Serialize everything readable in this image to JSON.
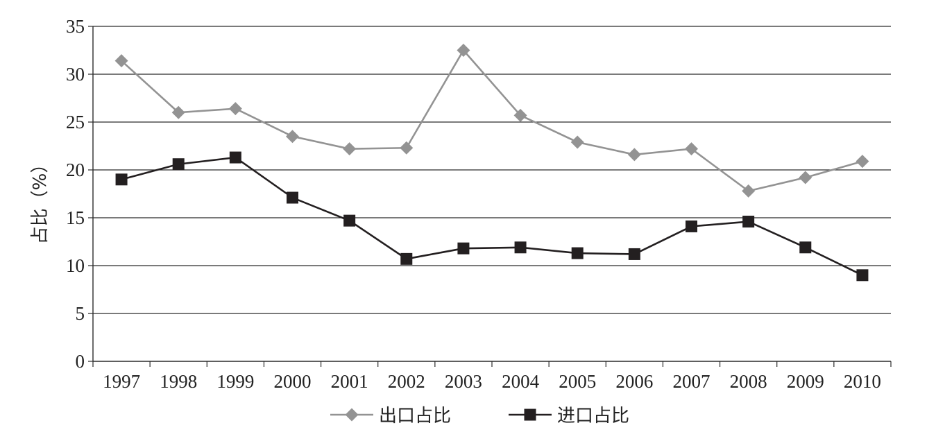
{
  "chart_data": {
    "type": "line",
    "title": "",
    "xlabel": "",
    "ylabel": "占比（%）",
    "ylim": [
      0,
      35
    ],
    "yticks": [
      "0",
      "5",
      "10",
      "15",
      "20",
      "25",
      "30",
      "35"
    ],
    "categories": [
      "1997",
      "1998",
      "1999",
      "2000",
      "2001",
      "2002",
      "2003",
      "2004",
      "2005",
      "2006",
      "2007",
      "2008",
      "2009",
      "2010"
    ],
    "grid": true,
    "legend_position": "bottom",
    "series": [
      {
        "name": "出口占比",
        "marker": "diamond",
        "color": "#939393",
        "values": [
          31.4,
          26.0,
          26.4,
          23.5,
          22.2,
          22.3,
          32.5,
          25.7,
          22.9,
          21.6,
          22.2,
          17.8,
          19.2,
          20.9
        ]
      },
      {
        "name": "进口占比",
        "marker": "square",
        "color": "#231f20",
        "values": [
          19.0,
          20.6,
          21.3,
          17.1,
          14.7,
          10.7,
          11.8,
          11.9,
          11.3,
          11.2,
          14.1,
          14.6,
          11.9,
          9.0
        ]
      }
    ]
  }
}
